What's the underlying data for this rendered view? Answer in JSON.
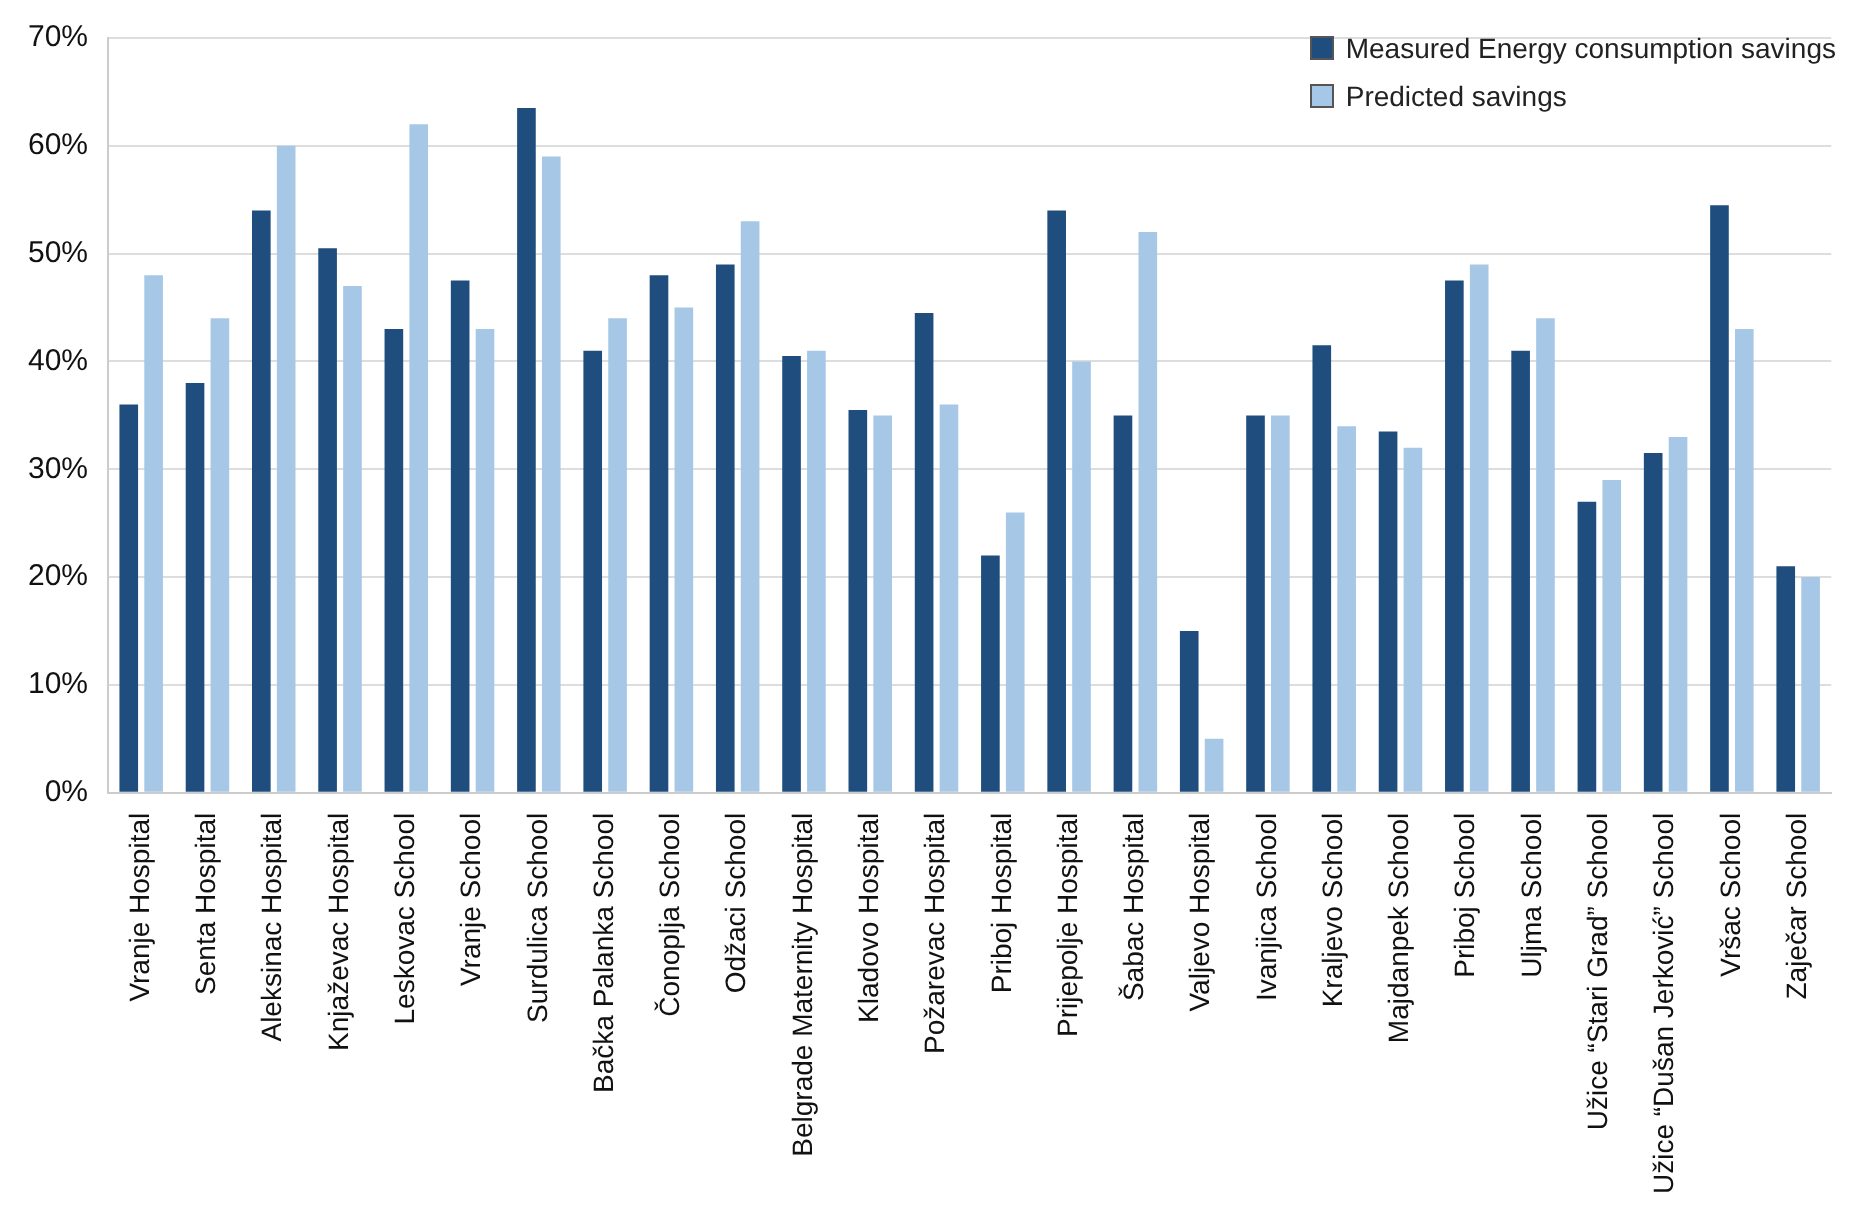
{
  "chart_data": {
    "type": "bar",
    "categories": [
      "Vranje Hospital",
      "Senta Hospital",
      "Aleksinac Hospital",
      "Knjaževac Hospital",
      "Leskovac School",
      "Vranje School",
      "Surdulica School",
      "Bačka Palanka School",
      "Čonoplja School",
      "Odžaci School",
      "Belgrade Maternity Hospital",
      "Kladovo Hospital",
      "Požarevac Hospital",
      "Priboj Hospital",
      "Prijepolje Hospital",
      "Šabac Hospital",
      "Valjevo Hospital",
      "Ivanjica School",
      "Kraljevo School",
      "Majdanpek School",
      "Priboj School",
      "Uljma School",
      "Užice “Stari Grad” School",
      "Užice “Dušan Jerković” School",
      "Vršac School",
      "Zaječar School"
    ],
    "series": [
      {
        "name": "Measured Energy consumption savings",
        "color": "#1f4e7e",
        "values": [
          36,
          38,
          54,
          50.5,
          43,
          47.5,
          63.5,
          41,
          48,
          49,
          40.5,
          35.5,
          44.5,
          22,
          54,
          35,
          15,
          35,
          41.5,
          33.5,
          47.5,
          41,
          27,
          31.5,
          54.5,
          21
        ]
      },
      {
        "name": "Predicted savings",
        "color": "#a6c8e6",
        "values": [
          48,
          44,
          60,
          47,
          62,
          43,
          59,
          44,
          45,
          53,
          41,
          35,
          36,
          26,
          40,
          52,
          5,
          35,
          34,
          32,
          49,
          44,
          29,
          33,
          43,
          20
        ]
      }
    ],
    "ylim": [
      0,
      70
    ],
    "yticks": [
      {
        "value": 0,
        "label": "0%"
      },
      {
        "value": 10,
        "label": "10%"
      },
      {
        "value": 20,
        "label": "20%"
      },
      {
        "value": 30,
        "label": "30%"
      },
      {
        "value": 40,
        "label": "40%"
      },
      {
        "value": 50,
        "label": "50%"
      },
      {
        "value": 60,
        "label": "60%"
      },
      {
        "value": 70,
        "label": "70%"
      }
    ],
    "grid": "y",
    "legend": "top right"
  }
}
